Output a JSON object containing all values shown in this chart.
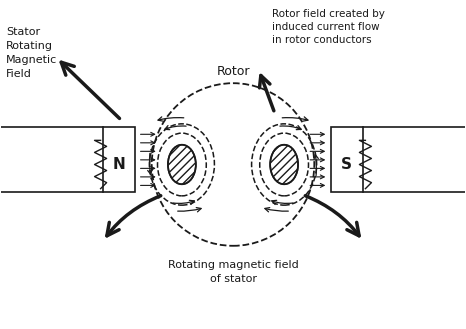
{
  "bg_color": "#ffffff",
  "line_color": "#1a1a1a",
  "text_stator_label": "Stator\nRotating\nMagnetic\nField",
  "text_rotor_label": "Rotor",
  "text_rotor_field": "Rotor field created by\ninduced current flow\nin rotor conductors",
  "text_rotating_field": "Rotating magnetic field\nof stator",
  "label_N": "N",
  "label_S": "S",
  "fig_w": 4.66,
  "fig_h": 3.29,
  "dpi": 100
}
